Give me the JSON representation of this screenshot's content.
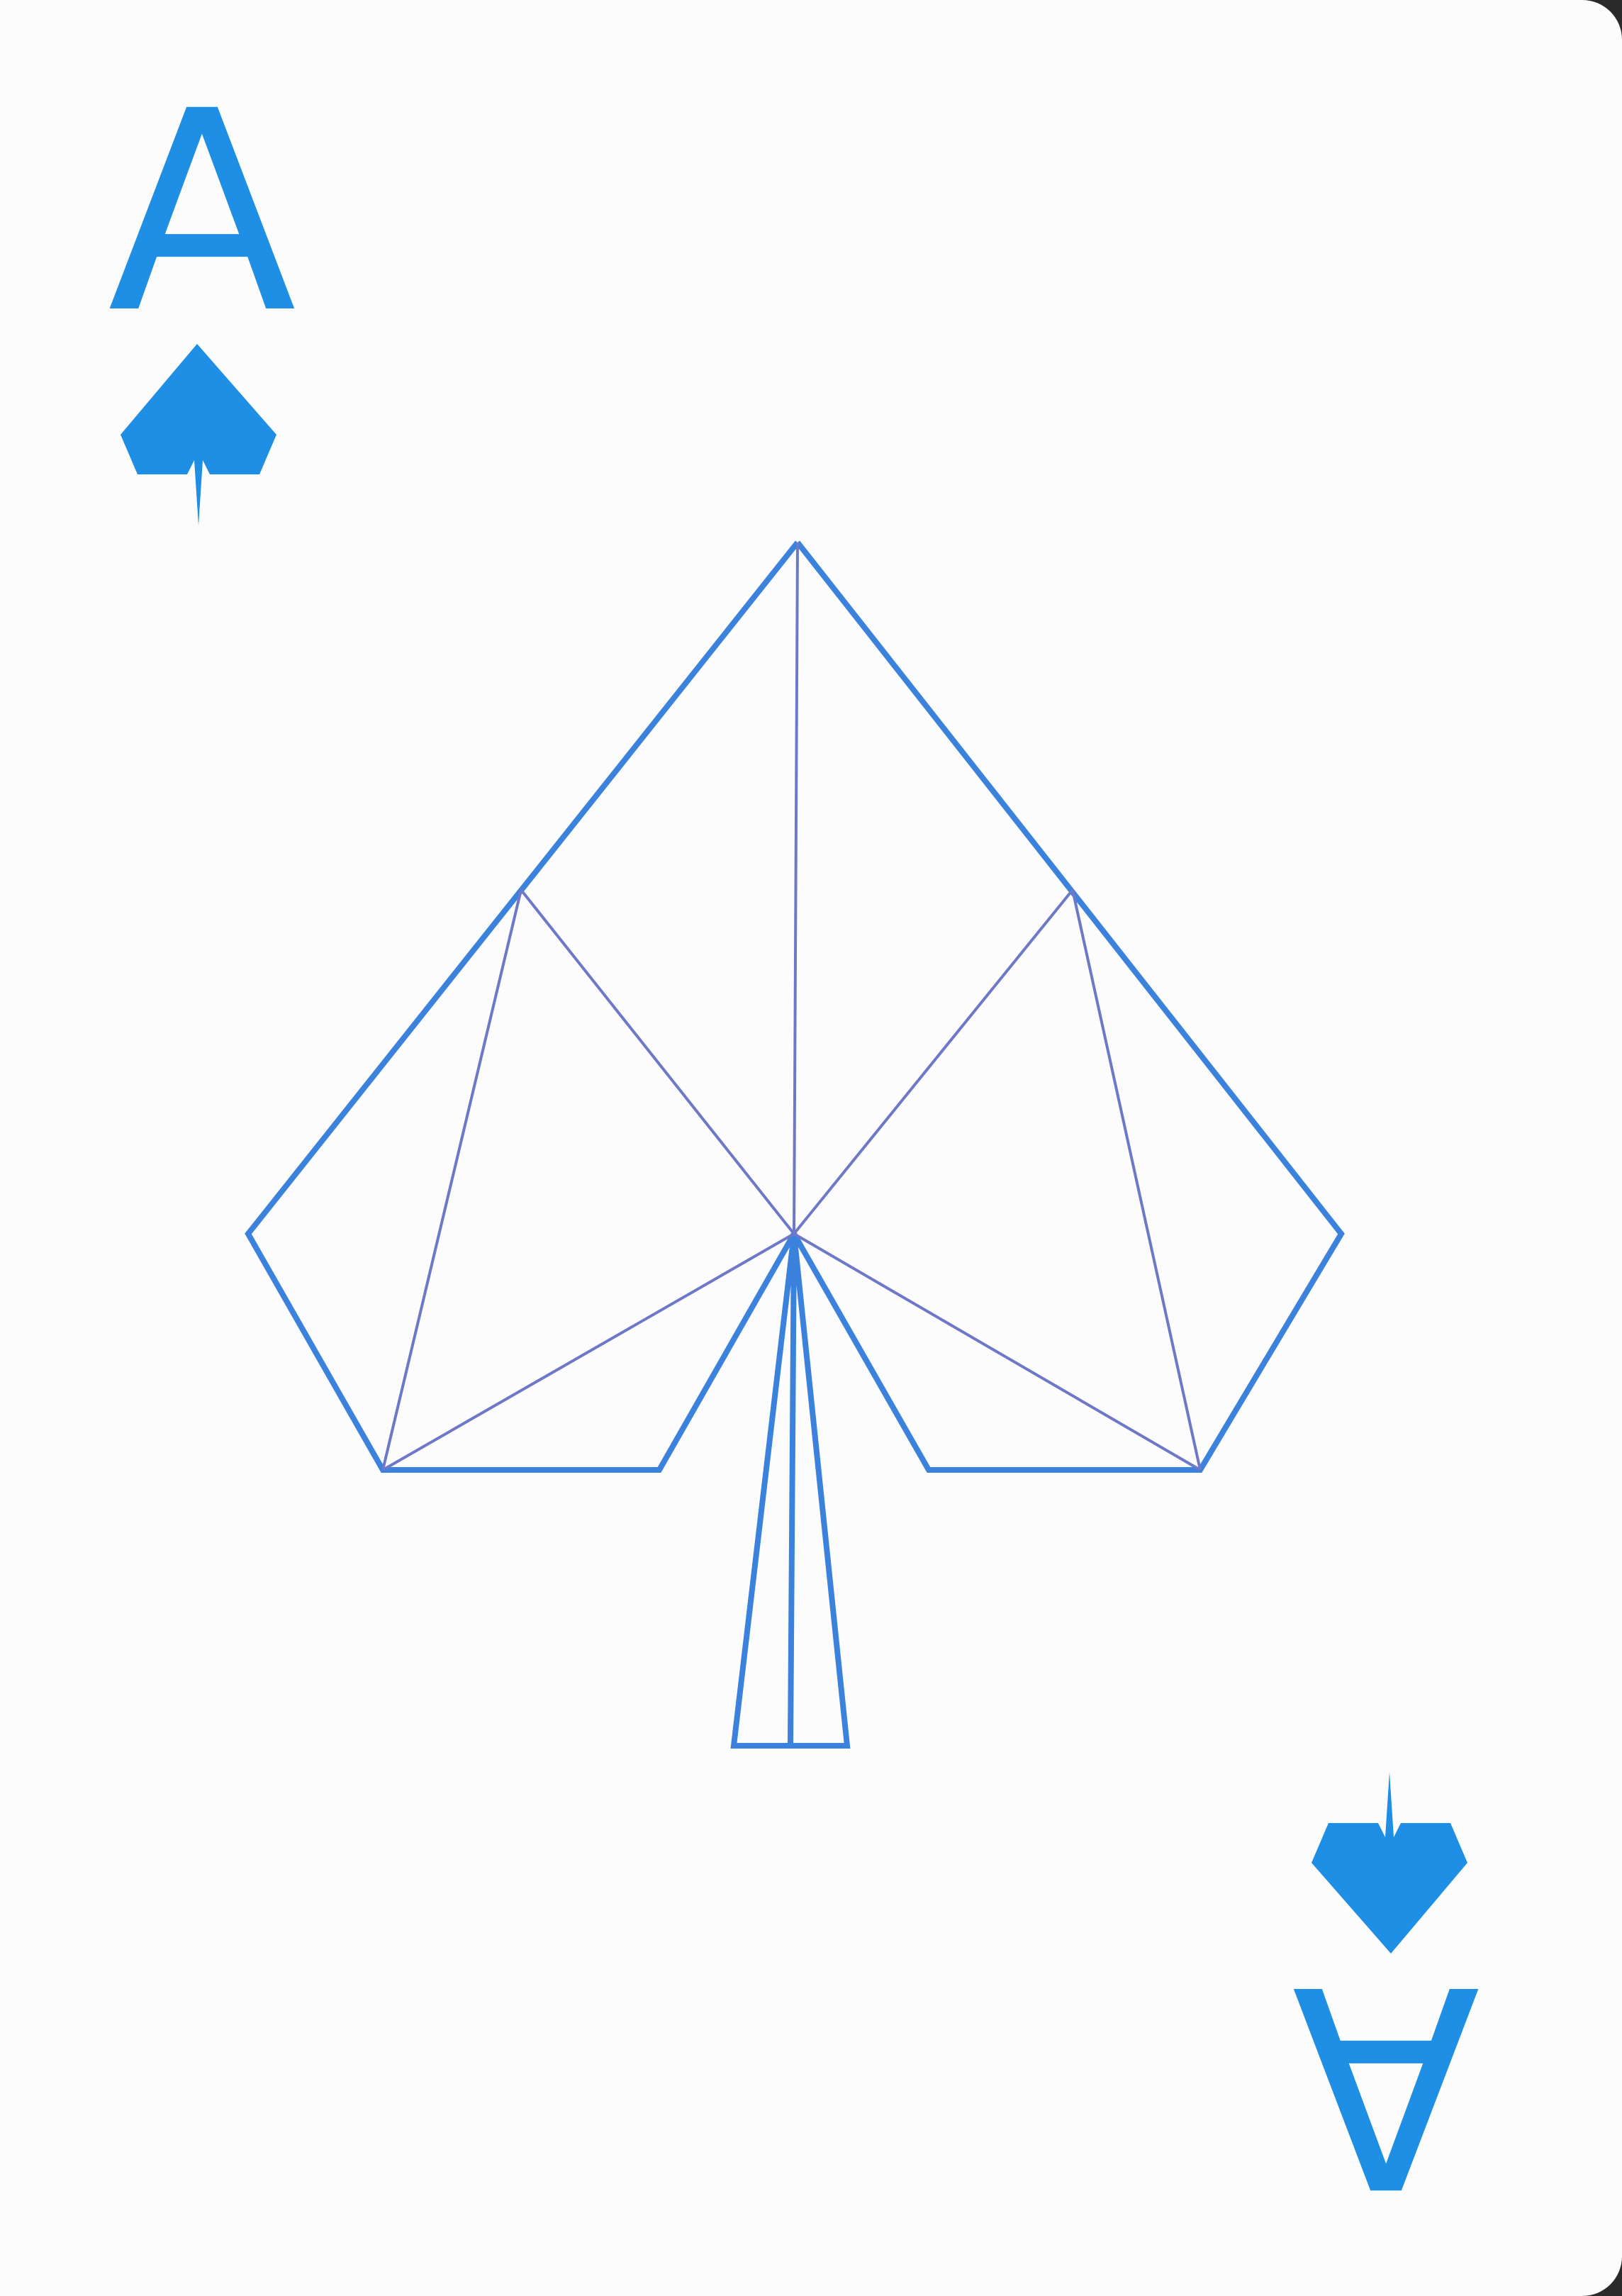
{
  "card": {
    "rank": "A",
    "suit": "spade",
    "ink_color": "#1f8fe6",
    "line_color": "#3b82dc",
    "inner_line_color": "#6e78c8",
    "background_color": "#fdfcfd"
  },
  "corners": {
    "top_left": {
      "rank": "A",
      "icon": "spade-icon"
    },
    "bottom_right": {
      "rank": "A",
      "icon": "spade-icon"
    }
  },
  "center_art": {
    "icon": "geometric-spade-outline-icon"
  }
}
